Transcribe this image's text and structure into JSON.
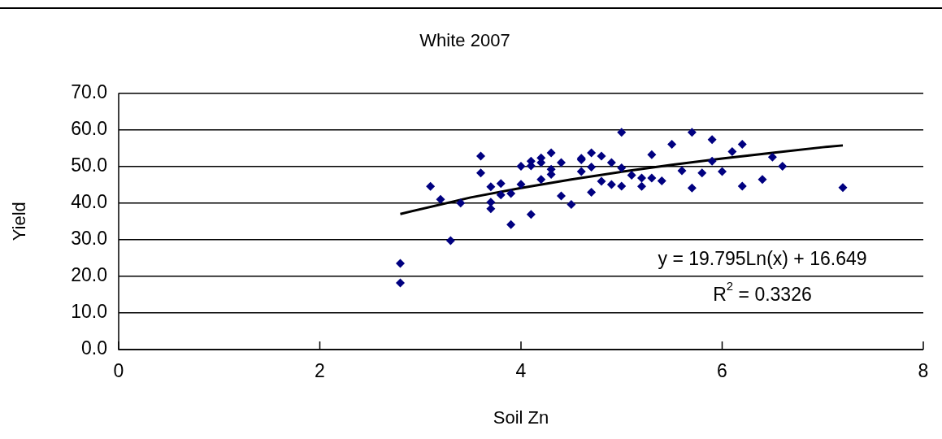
{
  "chart_data": {
    "type": "scatter",
    "title": "White 2007",
    "xlabel": "Soil Zn",
    "ylabel": "Yield",
    "xlim": [
      0,
      8
    ],
    "xticks": [
      0,
      2,
      4,
      6,
      8
    ],
    "ylim": [
      0,
      70
    ],
    "yticks": [
      {
        "value": 0,
        "label": "0.0"
      },
      {
        "value": 10,
        "label": "10.0"
      },
      {
        "value": 20,
        "label": "20.0"
      },
      {
        "value": 30,
        "label": "30.0"
      },
      {
        "value": 40,
        "label": "40.0"
      },
      {
        "value": 50,
        "label": "50.0"
      },
      {
        "value": 60,
        "label": "60.0"
      },
      {
        "value": 70,
        "label": "70.0"
      }
    ],
    "grid": "y",
    "legend": false,
    "marker": "diamond",
    "series": [
      {
        "type": "scatter",
        "color": "#000080",
        "x": [
          2.8,
          2.8,
          3.1,
          3.2,
          3.3,
          3.4,
          3.6,
          3.6,
          3.7,
          3.7,
          3.7,
          3.8,
          3.8,
          3.9,
          3.9,
          4.0,
          4.0,
          4.1,
          4.1,
          4.1,
          4.2,
          4.2,
          4.2,
          4.3,
          4.3,
          4.3,
          4.4,
          4.4,
          4.5,
          4.6,
          4.6,
          4.6,
          4.7,
          4.7,
          4.7,
          4.8,
          4.8,
          4.9,
          4.9,
          5.0,
          5.0,
          5.0,
          5.1,
          5.2,
          5.2,
          5.3,
          5.3,
          5.4,
          5.5,
          5.6,
          5.7,
          5.7,
          5.8,
          5.9,
          5.9,
          6.0,
          6.1,
          6.2,
          6.2,
          6.4,
          6.5,
          6.6,
          7.2
        ],
        "values": [
          23.5,
          18.2,
          44.5,
          41.0,
          29.7,
          40.0,
          52.8,
          48.2,
          44.4,
          40.2,
          38.4,
          45.3,
          42.2,
          42.6,
          34.1,
          50.0,
          45.1,
          51.4,
          50.1,
          36.9,
          52.3,
          51.0,
          46.4,
          53.7,
          49.2,
          47.8,
          51.0,
          41.9,
          39.6,
          52.2,
          51.8,
          48.6,
          53.7,
          49.8,
          42.9,
          52.8,
          45.9,
          51.0,
          45.0,
          59.3,
          49.6,
          44.6,
          47.6,
          46.8,
          44.5,
          53.2,
          46.8,
          46.0,
          56.0,
          48.8,
          59.3,
          44.1,
          48.2,
          57.3,
          51.4,
          48.6,
          54.0,
          56.0,
          44.6,
          46.4,
          52.5,
          50.0,
          44.2
        ]
      },
      {
        "type": "line",
        "color": "#000000",
        "marker": "none",
        "x": [
          2.8,
          3.5,
          4.0,
          4.5,
          5.0,
          5.5,
          6.0,
          6.5,
          7.0,
          7.2
        ],
        "values": [
          37.0,
          41.5,
          44.1,
          46.4,
          48.5,
          50.4,
          52.1,
          53.7,
          55.2,
          55.7
        ]
      }
    ],
    "annotations": [
      "y = 19.795Ln(x) + 16.649",
      "R$^{2}$ = 0.3326"
    ]
  }
}
